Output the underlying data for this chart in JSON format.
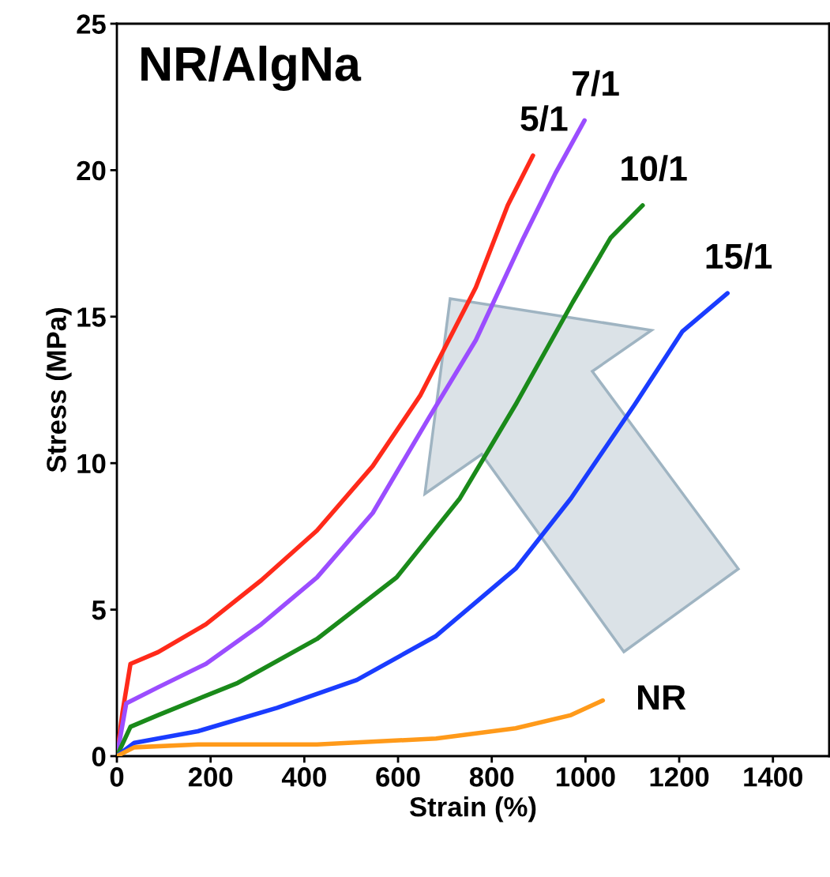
{
  "chart_data": {
    "type": "line",
    "xlabel": "Strain (%)",
    "ylabel": "Stress (MPa)",
    "xlim": [
      0,
      1520
    ],
    "ylim": [
      0,
      25
    ],
    "xticks": [
      0,
      200,
      400,
      600,
      800,
      1000,
      1200,
      1400
    ],
    "yticks": [
      0,
      5,
      10,
      15,
      20,
      25
    ],
    "grid": false,
    "legend": false,
    "marker": "none",
    "line_style": "solid",
    "series": [
      {
        "name": "5/1",
        "color": "#ff2a1a",
        "x": [
          0,
          12,
          29,
          88,
          190,
          308,
          427,
          546,
          647,
          766,
          834,
          888
        ],
        "values": [
          0,
          1.5,
          3.15,
          3.55,
          4.5,
          6.0,
          7.7,
          9.9,
          12.3,
          16.0,
          18.8,
          20.5
        ]
      },
      {
        "name": "7/1",
        "color": "#9b4dff",
        "x": [
          0,
          20,
          88,
          190,
          308,
          427,
          546,
          664,
          766,
          868,
          936,
          998
        ],
        "values": [
          0,
          1.8,
          2.35,
          3.15,
          4.5,
          6.1,
          8.3,
          11.5,
          14.2,
          17.7,
          19.9,
          21.7
        ]
      },
      {
        "name": "10/1",
        "color": "#1a8a1a",
        "x": [
          0,
          29,
          88,
          258,
          427,
          597,
          732,
          851,
          973,
          1054,
          1122
        ],
        "values": [
          0,
          1.0,
          1.4,
          2.5,
          4.0,
          6.1,
          8.8,
          12.0,
          15.5,
          17.7,
          18.8
        ]
      },
      {
        "name": "15/1",
        "color": "#1a3cff",
        "x": [
          0,
          37,
          173,
          342,
          512,
          681,
          851,
          969,
          1105,
          1207,
          1303
        ],
        "values": [
          0,
          0.45,
          0.85,
          1.65,
          2.6,
          4.1,
          6.4,
          8.8,
          12.0,
          14.5,
          15.8
        ]
      },
      {
        "name": "NR",
        "color": "#ff9a1a",
        "x": [
          0,
          37,
          173,
          427,
          681,
          851,
          969,
          1037
        ],
        "values": [
          0,
          0.3,
          0.4,
          0.4,
          0.6,
          0.95,
          1.4,
          1.9
        ]
      }
    ],
    "annotations": [
      "NR/AlgNa"
    ]
  }
}
